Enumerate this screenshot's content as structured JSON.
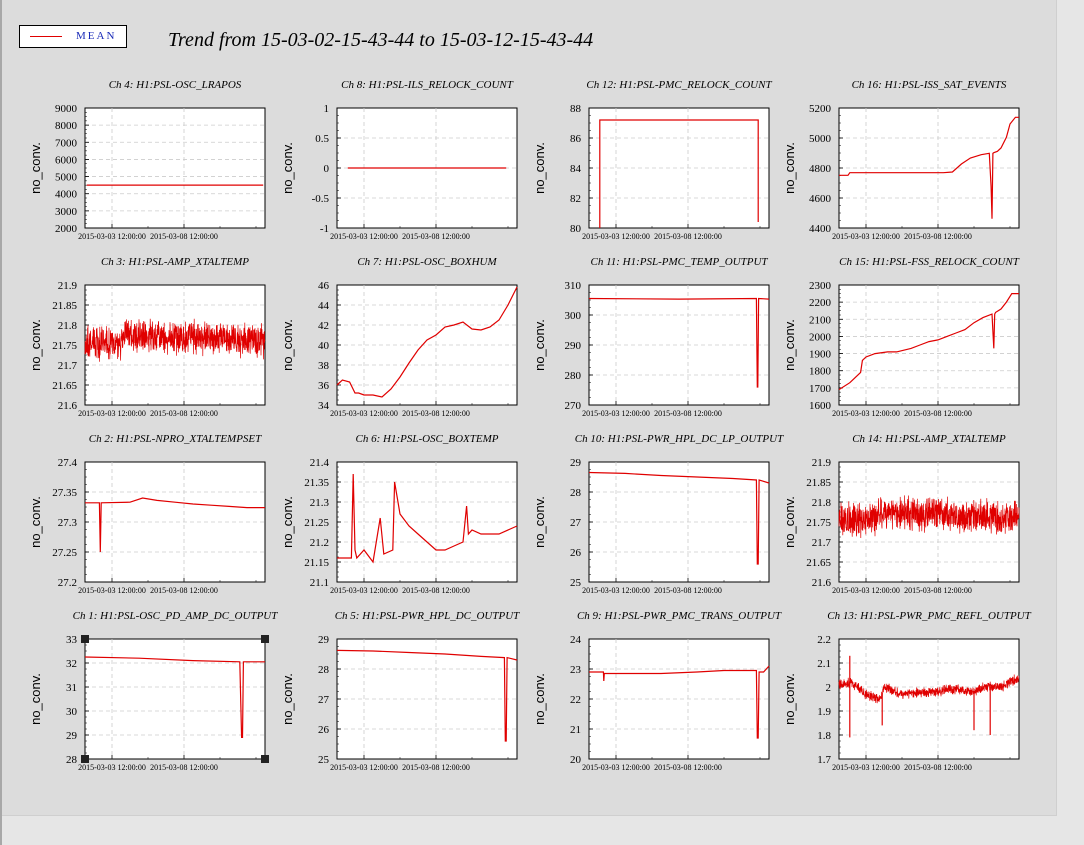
{
  "title": "Trend from 15-03-02-15-43-44 to 15-03-12-15-43-44",
  "legend": {
    "label": "MEAN"
  },
  "colors": {
    "series": "#e00000",
    "panel_bg": "#dcdcdc",
    "plot_bg": "#ffffff",
    "grid": "#cccccc"
  },
  "chart_data": [
    {
      "type": "line",
      "title": "Ch 4: H1:PSL-OSC_LRAPOS",
      "ylabel": "no_conv.",
      "ylim": [
        2000,
        9000
      ],
      "yticks": [
        "2000",
        "3000",
        "4000",
        "5000",
        "6000",
        "7000",
        "8000",
        "9000"
      ],
      "xticks": [
        "2015-03-03 12:00:00",
        "2015-03-08 12:00:00"
      ],
      "grid": true,
      "series": [
        {
          "x": [
            0.1,
            9.9
          ],
          "y": [
            4500,
            4500
          ]
        }
      ]
    },
    {
      "type": "line",
      "title": "Ch 8: H1:PSL-ILS_RELOCK_COUNT",
      "ylabel": "no_conv.",
      "ylim": [
        -1,
        1
      ],
      "yticks": [
        "-1",
        "-0.5",
        "0",
        "0.5",
        "1"
      ],
      "xticks": [
        "2015-03-03 12:00:00",
        "2015-03-08 12:00:00"
      ],
      "grid": true,
      "series": [
        {
          "x": [
            0.6,
            9.4
          ],
          "y": [
            0,
            0
          ]
        }
      ]
    },
    {
      "type": "line",
      "title": "Ch 12: H1:PSL-PMC_RELOCK_COUNT",
      "ylabel": "no_conv.",
      "ylim": [
        79,
        89
      ],
      "yticks": [
        "80",
        "82",
        "84",
        "86",
        "88"
      ],
      "xticks": [
        "2015-03-03 12:00:00",
        "2015-03-08 12:00:00"
      ],
      "grid": true,
      "series": [
        {
          "x": [
            0.6,
            0.6,
            9.4,
            9.4
          ],
          "y": [
            79,
            88,
            88,
            79.5
          ]
        }
      ]
    },
    {
      "type": "line",
      "title": "Ch 16: H1:PSL-ISS_SAT_EVENTS",
      "ylabel": "no_conv.",
      "ylim": [
        4400,
        5300
      ],
      "yticks": [
        "4400",
        "4600",
        "4800",
        "5000",
        "5200"
      ],
      "xticks": [
        "2015-03-03 12:00:00",
        "2015-03-08 12:00:00"
      ],
      "grid": true,
      "series": [
        {
          "x": [
            0,
            0.5,
            0.6,
            1,
            2,
            3,
            4,
            5,
            5.8,
            6.3,
            6.8,
            7.3,
            7.9,
            8.35,
            8.45,
            8.5,
            8.55,
            8.6,
            8.8,
            9.0,
            9.3,
            9.5,
            9.8,
            10
          ],
          "y": [
            4795,
            4795,
            4815,
            4815,
            4815,
            4815,
            4815,
            4815,
            4815,
            4820,
            4880,
            4925,
            4950,
            4960,
            4710,
            4470,
            4960,
            4965,
            4975,
            5000,
            5080,
            5180,
            5230,
            5230
          ]
        }
      ]
    },
    {
      "type": "line",
      "title": "Ch 3: H1:PSL-AMP_XTALTEMP",
      "ylabel": "no_conv.",
      "ylim": [
        21.6,
        21.9
      ],
      "yticks": [
        "21.6",
        "21.65",
        "21.7",
        "21.75",
        "21.8",
        "21.85",
        "21.9"
      ],
      "xticks": [
        "2015-03-03 12:00:00",
        "2015-03-08 12:00:00"
      ],
      "grid": true,
      "series": [
        {
          "noise": true,
          "x": [
            0,
            2,
            2.2,
            5,
            10
          ],
          "y": [
            21.755,
            21.755,
            21.775,
            21.77,
            21.76
          ],
          "amp": 0.035
        }
      ]
    },
    {
      "type": "line",
      "title": "Ch 7: H1:PSL-OSC_BOXHUM",
      "ylabel": "no_conv.",
      "ylim": [
        34,
        46
      ],
      "yticks": [
        "34",
        "36",
        "38",
        "40",
        "42",
        "44",
        "46"
      ],
      "xticks": [
        "2015-03-03 12:00:00",
        "2015-03-08 12:00:00"
      ],
      "grid": true,
      "series": [
        {
          "x": [
            0,
            0.3,
            0.7,
            1.0,
            1.2,
            1.5,
            2.0,
            2.5,
            3.0,
            3.5,
            4.0,
            4.5,
            5.0,
            5.5,
            6.0,
            6.5,
            7.0,
            7.5,
            8.0,
            8.5,
            9.0,
            9.5,
            10
          ],
          "y": [
            36,
            36.5,
            36.3,
            35.2,
            35.2,
            35.0,
            35.0,
            34.8,
            35.6,
            36.8,
            38.2,
            39.5,
            40.5,
            41.0,
            41.8,
            42.0,
            42.3,
            41.6,
            41.5,
            41.8,
            42.5,
            44.0,
            45.8
          ]
        }
      ]
    },
    {
      "type": "line",
      "title": "Ch 11: H1:PSL-PMC_TEMP_OUTPUT",
      "ylabel": "no_conv.",
      "ylim": [
        270,
        310
      ],
      "yticks": [
        "270",
        "280",
        "290",
        "300",
        "310"
      ],
      "xticks": [
        "2015-03-03 12:00:00",
        "2015-03-08 12:00:00"
      ],
      "grid": true,
      "series": [
        {
          "x": [
            0,
            5,
            9.3,
            9.35,
            9.38,
            9.42,
            10
          ],
          "y": [
            305.5,
            305.3,
            305.5,
            276,
            276,
            305.5,
            305.3
          ]
        }
      ]
    },
    {
      "type": "line",
      "title": "Ch 15: H1:PSL-FSS_RELOCK_COUNT",
      "ylabel": "no_conv.",
      "ylim": [
        1600,
        2300
      ],
      "yticks": [
        "1600",
        "1700",
        "1800",
        "1900",
        "2000",
        "2100",
        "2200",
        "2300"
      ],
      "xticks": [
        "2015-03-03 12:00:00",
        "2015-03-08 12:00:00"
      ],
      "grid": true,
      "series": [
        {
          "x": [
            0,
            0.6,
            1.2,
            1.3,
            1.5,
            2.0,
            2.7,
            3.2,
            4.0,
            4.5,
            5.0,
            5.5,
            6.0,
            6.5,
            7.0,
            7.5,
            8.0,
            8.5,
            8.6,
            8.65,
            8.7,
            9.0,
            9.3,
            9.6,
            10
          ],
          "y": [
            1690,
            1730,
            1790,
            1860,
            1880,
            1900,
            1910,
            1910,
            1930,
            1950,
            1970,
            1980,
            2000,
            2020,
            2040,
            2080,
            2110,
            2130,
            1930,
            2130,
            2140,
            2160,
            2200,
            2250,
            2250
          ]
        }
      ]
    },
    {
      "type": "line",
      "title": "Ch 2: H1:PSL-NPRO_XTALTEMPSET",
      "ylabel": "no_conv.",
      "ylim": [
        27.2,
        27.4
      ],
      "yticks": [
        "27.2",
        "27.25",
        "27.3",
        "27.35",
        "27.4"
      ],
      "xticks": [
        "2015-03-03 12:00:00",
        "2015-03-08 12:00:00"
      ],
      "grid": true,
      "series": [
        {
          "x": [
            0,
            0.8,
            0.85,
            0.9,
            2.5,
            3.2,
            4,
            5,
            6,
            7,
            8,
            9,
            10
          ],
          "y": [
            27.332,
            27.332,
            27.25,
            27.332,
            27.333,
            27.34,
            27.336,
            27.333,
            27.33,
            27.328,
            27.326,
            27.324,
            27.324
          ]
        }
      ]
    },
    {
      "type": "line",
      "title": "Ch 6: H1:PSL-OSC_BOXTEMP",
      "ylabel": "no_conv.",
      "ylim": [
        21.1,
        21.4
      ],
      "yticks": [
        "21.1",
        "21.15",
        "21.2",
        "21.25",
        "21.3",
        "21.35",
        "21.4"
      ],
      "xticks": [
        "2015-03-03 12:00:00",
        "2015-03-08 12:00:00"
      ],
      "grid": true,
      "series": [
        {
          "x": [
            0,
            0.8,
            0.9,
            1.0,
            1.1,
            1.5,
            2.0,
            2.4,
            2.6,
            3.1,
            3.2,
            3.5,
            4.0,
            4.5,
            5.0,
            5.5,
            6.0,
            6.5,
            7.0,
            7.2,
            7.3,
            7.5,
            8.0,
            9.0,
            10
          ],
          "y": [
            21.16,
            21.16,
            21.37,
            21.18,
            21.16,
            21.18,
            21.15,
            21.26,
            21.17,
            21.18,
            21.35,
            21.27,
            21.24,
            21.22,
            21.2,
            21.18,
            21.18,
            21.19,
            21.2,
            21.29,
            21.22,
            21.23,
            21.22,
            21.22,
            21.24
          ]
        }
      ]
    },
    {
      "type": "line",
      "title": "Ch 10: H1:PSL-PWR_HPL_DC_LP_OUTPUT",
      "ylabel": "no_conv.",
      "ylim": [
        25,
        29
      ],
      "yticks": [
        "25",
        "26",
        "27",
        "28",
        "29"
      ],
      "xticks": [
        "2015-03-03 12:00:00",
        "2015-03-08 12:00:00"
      ],
      "grid": true,
      "series": [
        {
          "x": [
            0,
            2,
            4,
            6,
            8,
            9.3,
            9.35,
            9.4,
            9.45,
            10
          ],
          "y": [
            28.65,
            28.62,
            28.55,
            28.5,
            28.45,
            28.4,
            25.6,
            25.6,
            28.4,
            28.3
          ]
        }
      ]
    },
    {
      "type": "line",
      "title": "Ch 14: H1:PSL-AMP_XTALTEMP",
      "ylabel": "no_conv.",
      "ylim": [
        21.6,
        21.9
      ],
      "yticks": [
        "21.6",
        "21.65",
        "21.7",
        "21.75",
        "21.8",
        "21.85",
        "21.9"
      ],
      "xticks": [
        "2015-03-03 12:00:00",
        "2015-03-08 12:00:00"
      ],
      "grid": true,
      "series": [
        {
          "noise": true,
          "x": [
            0,
            2,
            2.2,
            5,
            10
          ],
          "y": [
            21.755,
            21.755,
            21.775,
            21.77,
            21.76
          ],
          "amp": 0.035
        }
      ]
    },
    {
      "type": "line",
      "title": "Ch 1: H1:PSL-OSC_PD_AMP_DC_OUTPUT",
      "ylabel": "no_conv.",
      "ylim": [
        28,
        33
      ],
      "yticks": [
        "28",
        "29",
        "30",
        "31",
        "32",
        "33"
      ],
      "xticks": [
        "2015-03-03 12:00:00",
        "2015-03-08 12:00:00"
      ],
      "grid": true,
      "series": [
        {
          "x": [
            0,
            3,
            6,
            8.6,
            8.7,
            8.75,
            8.8,
            10
          ],
          "y": [
            32.25,
            32.2,
            32.1,
            32.05,
            28.9,
            28.9,
            32.05,
            32.05
          ]
        }
      ]
    },
    {
      "type": "line",
      "title": "Ch 5: H1:PSL-PWR_HPL_DC_OUTPUT",
      "ylabel": "no_conv.",
      "ylim": [
        25,
        29
      ],
      "yticks": [
        "25",
        "26",
        "27",
        "28",
        "29"
      ],
      "xticks": [
        "2015-03-03 12:00:00",
        "2015-03-08 12:00:00"
      ],
      "grid": true,
      "series": [
        {
          "x": [
            0,
            2,
            4,
            6,
            8,
            9.3,
            9.35,
            9.4,
            9.45,
            10
          ],
          "y": [
            28.62,
            28.6,
            28.55,
            28.5,
            28.42,
            28.38,
            25.6,
            25.6,
            28.38,
            28.3
          ]
        }
      ]
    },
    {
      "type": "line",
      "title": "Ch 9: H1:PSL-PWR_PMC_TRANS_OUTPUT",
      "ylabel": "no_conv.",
      "ylim": [
        20,
        24
      ],
      "yticks": [
        "20",
        "21",
        "22",
        "23",
        "24"
      ],
      "xticks": [
        "2015-03-03 12:00:00",
        "2015-03-08 12:00:00"
      ],
      "grid": true,
      "series": [
        {
          "x": [
            0,
            0.8,
            0.82,
            0.85,
            2,
            4,
            6,
            7.5,
            9.3,
            9.35,
            9.4,
            9.45,
            9.7,
            10
          ],
          "y": [
            22.9,
            22.9,
            22.6,
            22.85,
            22.85,
            22.85,
            22.9,
            22.95,
            22.95,
            20.7,
            20.7,
            22.9,
            22.9,
            23.1
          ]
        }
      ]
    },
    {
      "type": "line",
      "title": "Ch 13: H1:PSL-PWR_PMC_REFL_OUTPUT",
      "ylabel": "no_conv.",
      "ylim": [
        1.7,
        2.2
      ],
      "yticks": [
        "1.7",
        "1.8",
        "1.9",
        "2",
        "2.1",
        "2.2"
      ],
      "xticks": [
        "2015-03-03 12:00:00",
        "2015-03-08 12:00:00"
      ],
      "grid": true,
      "series": [
        {
          "noise": true,
          "spikes": [
            [
              0.6,
              1.79
            ],
            [
              0.6,
              2.13
            ],
            [
              2.4,
              1.84
            ],
            [
              7.5,
              1.82
            ],
            [
              8.4,
              1.8
            ]
          ],
          "x": [
            0,
            0.7,
            1.5,
            2.3,
            2.5,
            3.5,
            5,
            6.5,
            7.4,
            8,
            9,
            10
          ],
          "y": [
            2.01,
            2.02,
            1.97,
            1.95,
            2.0,
            1.97,
            1.98,
            1.99,
            1.98,
            2.0,
            2.0,
            2.04
          ],
          "amp": 0.018
        }
      ]
    }
  ]
}
